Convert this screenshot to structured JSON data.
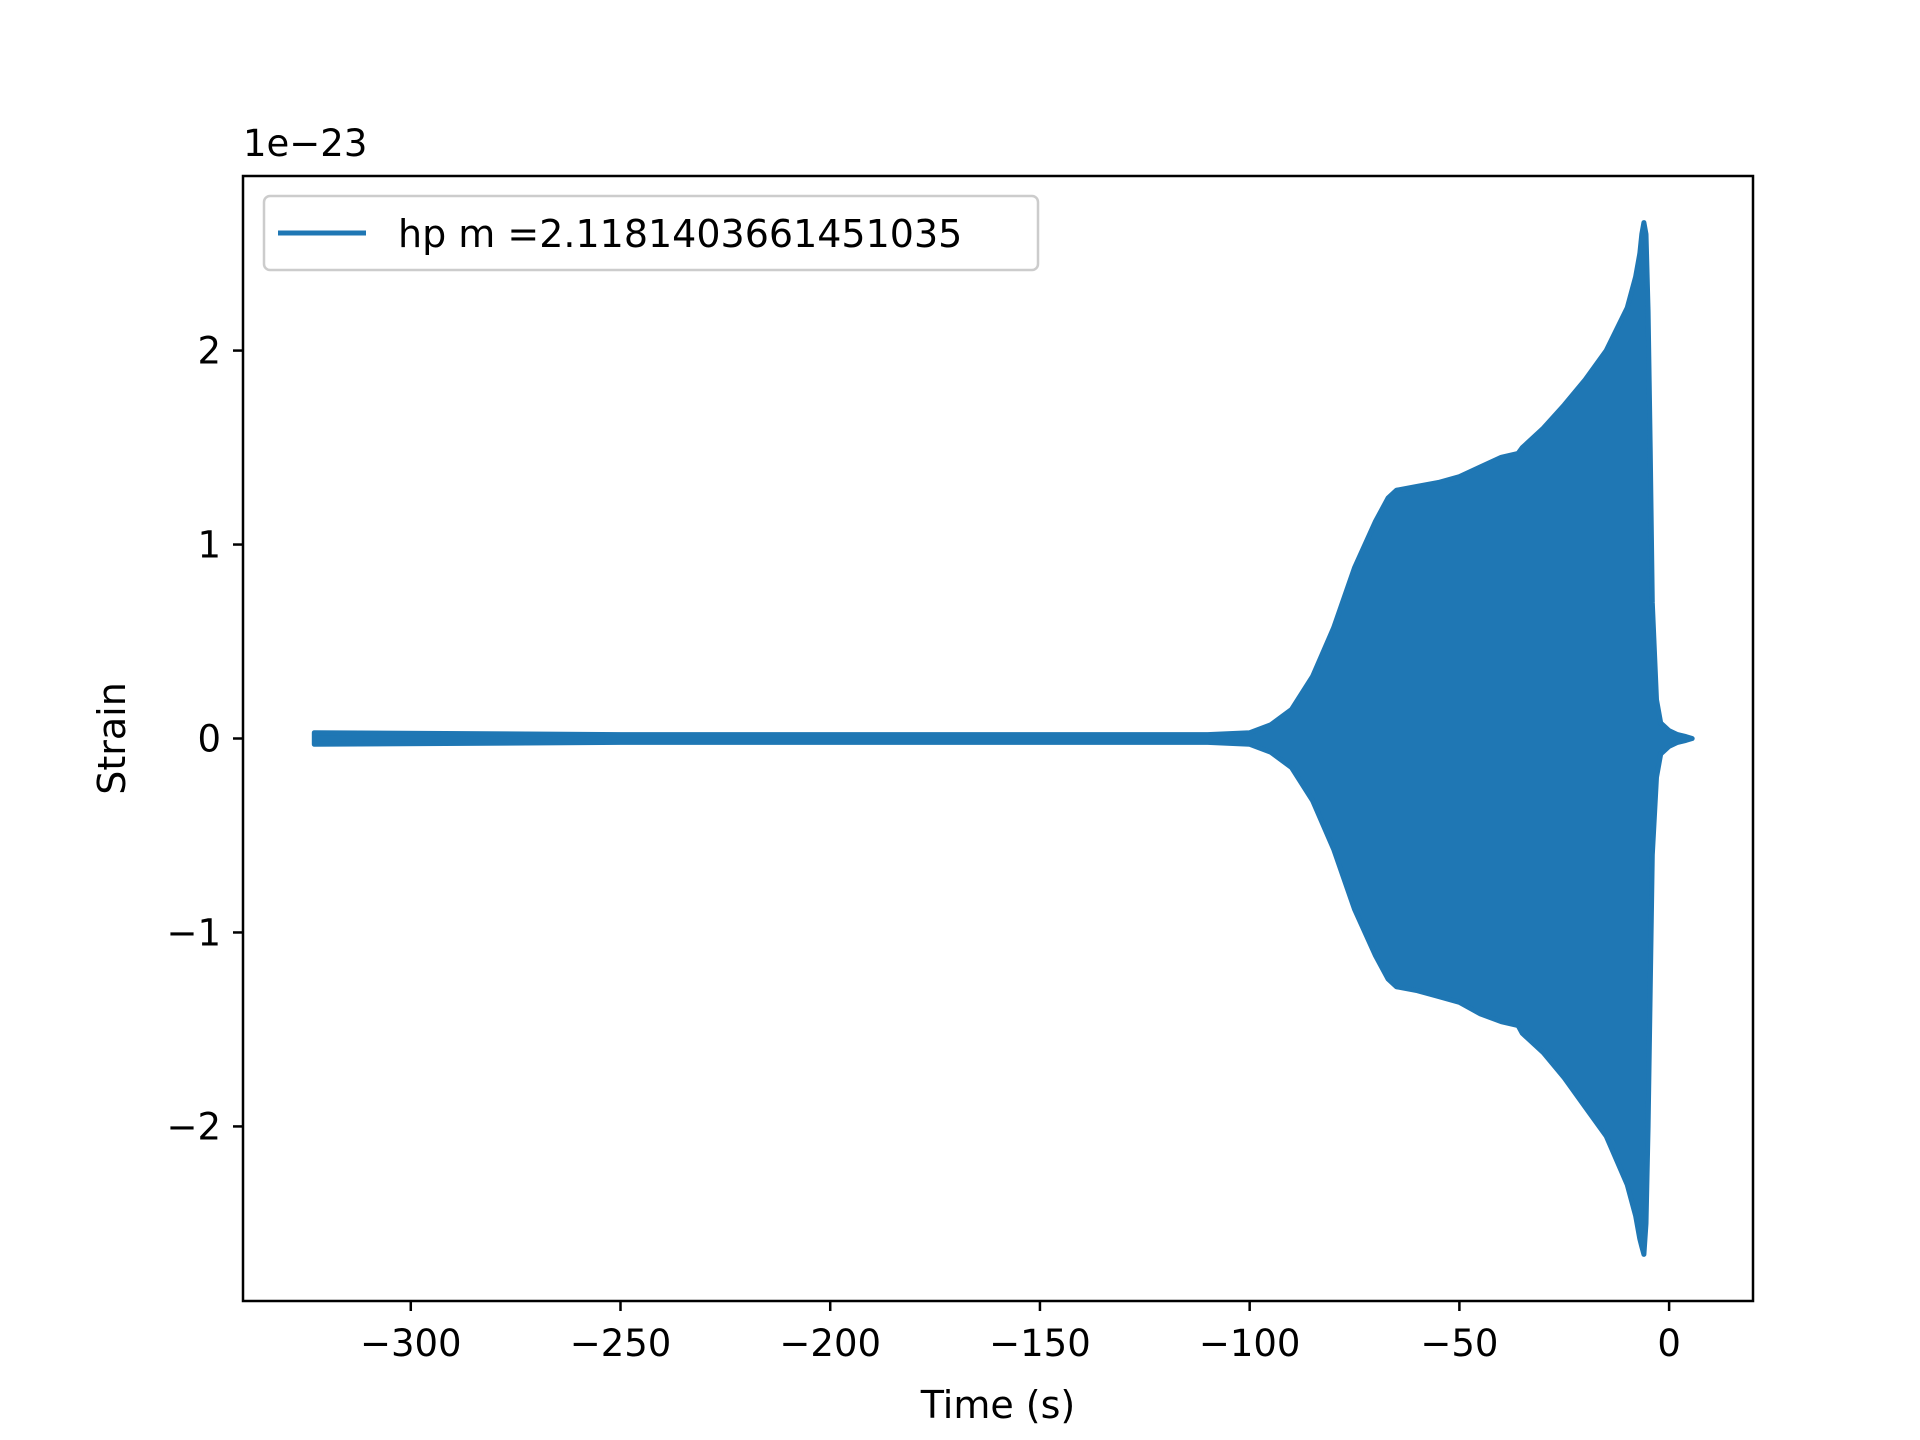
{
  "chart_data": {
    "type": "line",
    "title": "",
    "xlabel": "Time (s)",
    "ylabel": "Strain",
    "y_offset_label": "1e−23",
    "y_scale_factor": 1e-23,
    "xlim": [
      -340,
      20
    ],
    "ylim": [
      -2.9,
      2.9
    ],
    "x_ticks": [
      -300,
      -250,
      -200,
      -150,
      -100,
      -50,
      0
    ],
    "x_tick_labels": [
      "−300",
      "−250",
      "−200",
      "−150",
      "−100",
      "−50",
      "0"
    ],
    "y_ticks": [
      -2,
      -1,
      0,
      1,
      2
    ],
    "y_tick_labels": [
      "−2",
      "−1",
      "0",
      "1",
      "2"
    ],
    "grid": false,
    "legend_position": "top-left",
    "series": [
      {
        "name": "hp m =2.1181403661451035",
        "color": "#1f77b4",
        "x_start": -323,
        "x_end": 5.5,
        "envelope": {
          "x": [
            -323,
            -250,
            -200,
            -150,
            -110,
            -100,
            -95,
            -90,
            -85,
            -80,
            -75,
            -70,
            -67,
            -65,
            -60,
            -55,
            -50,
            -45,
            -40,
            -36,
            -35,
            -30,
            -25,
            -20,
            -15,
            -10,
            -8,
            -7,
            -6.5,
            -6,
            -5.5,
            -5,
            -4.5,
            -4,
            -3,
            -2,
            0,
            2,
            4,
            5.5
          ],
          "upper": [
            0.03,
            0.02,
            0.02,
            0.02,
            0.02,
            0.03,
            0.07,
            0.15,
            0.32,
            0.57,
            0.88,
            1.12,
            1.24,
            1.28,
            1.3,
            1.32,
            1.35,
            1.4,
            1.45,
            1.47,
            1.5,
            1.6,
            1.72,
            1.85,
            2.0,
            2.22,
            2.38,
            2.5,
            2.6,
            2.66,
            2.6,
            2.2,
            1.5,
            0.7,
            0.2,
            0.08,
            0.04,
            0.02,
            0.01,
            0.0
          ],
          "lower": [
            -0.03,
            -0.02,
            -0.02,
            -0.02,
            -0.02,
            -0.03,
            -0.07,
            -0.15,
            -0.32,
            -0.57,
            -0.88,
            -1.12,
            -1.24,
            -1.28,
            -1.3,
            -1.33,
            -1.36,
            -1.42,
            -1.46,
            -1.48,
            -1.52,
            -1.62,
            -1.75,
            -1.9,
            -2.05,
            -2.3,
            -2.46,
            -2.58,
            -2.62,
            -2.66,
            -2.5,
            -2.0,
            -1.3,
            -0.6,
            -0.2,
            -0.08,
            -0.04,
            -0.02,
            -0.01,
            0.0
          ]
        }
      }
    ]
  }
}
